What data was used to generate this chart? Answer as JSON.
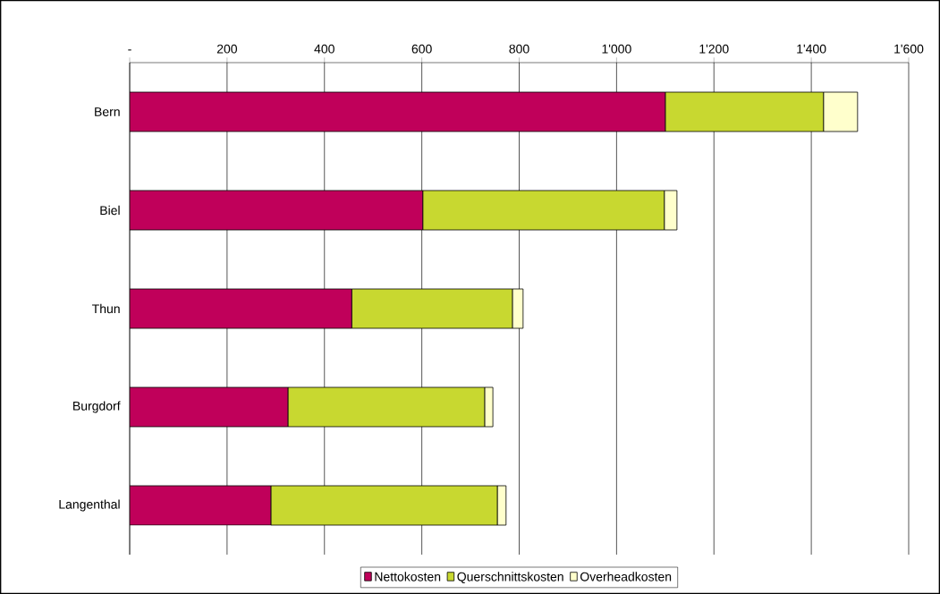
{
  "chart_data": {
    "type": "bar",
    "orientation": "horizontal",
    "stacked": true,
    "categories": [
      "Bern",
      "Biel",
      "Thun",
      "Burgdorf",
      "Langenthal"
    ],
    "series": [
      {
        "name": "Nettokosten",
        "color": "#c0005a",
        "values": [
          1100,
          602,
          456,
          325,
          290
        ]
      },
      {
        "name": "Querschnittskosten",
        "color": "#c8d830",
        "values": [
          325,
          496,
          330,
          404,
          465
        ]
      },
      {
        "name": "Overheadkosten",
        "color": "#ffffcc",
        "values": [
          70,
          26,
          22,
          17,
          18
        ]
      }
    ],
    "xlim": [
      0,
      1600
    ],
    "xticks": [
      {
        "value": 0,
        "label": "-"
      },
      200,
      400,
      600,
      800,
      {
        "value": 1000,
        "label": "1'000"
      },
      {
        "value": 1200,
        "label": "1'200"
      },
      {
        "value": 1400,
        "label": "1'400"
      },
      {
        "value": 1600,
        "label": "1'600"
      }
    ],
    "grid": "x",
    "legend": "bottom"
  }
}
